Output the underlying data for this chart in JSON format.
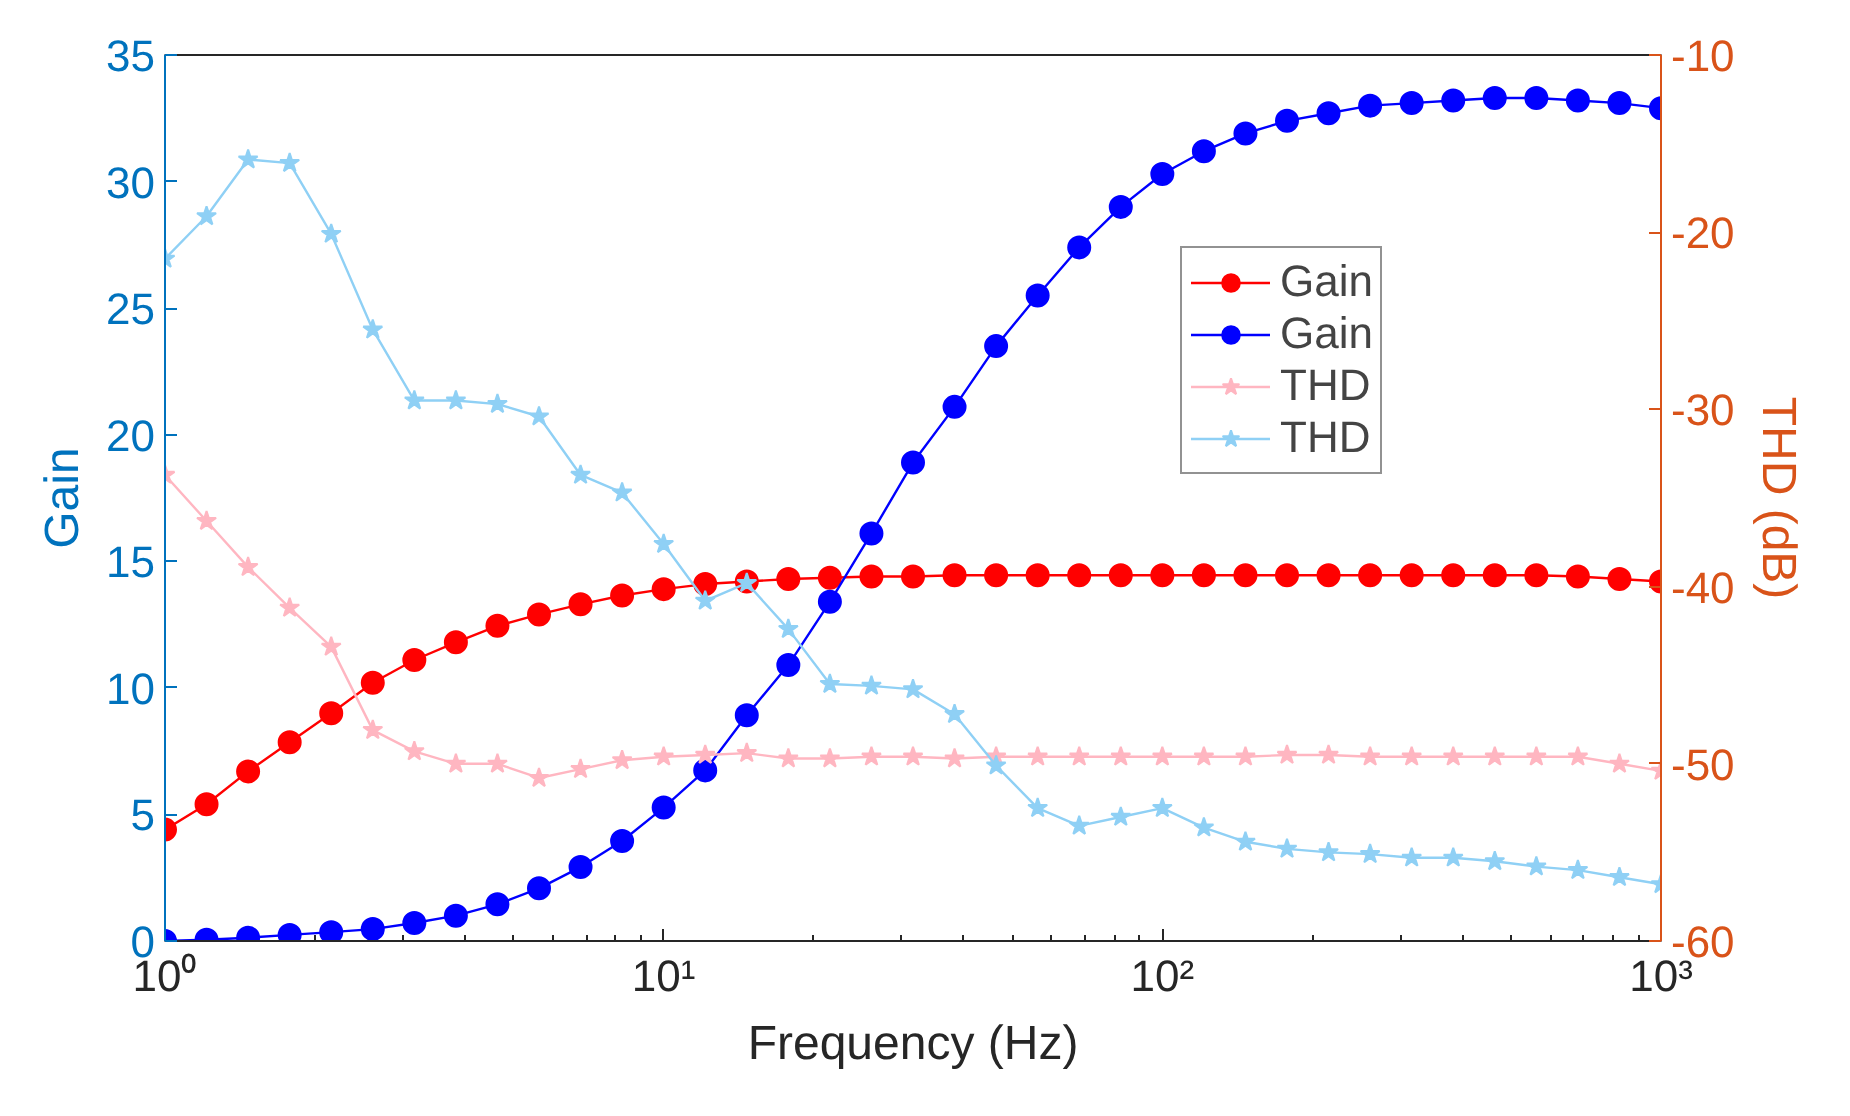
{
  "chart_data": {
    "type": "line",
    "xlabel": "Frequency (Hz)",
    "ylabel": "Gain",
    "y2label": "THD (dB)",
    "x": [
      1.0,
      1.2115,
      1.4678,
      1.7783,
      2.1544,
      2.6102,
      3.1623,
      3.8312,
      4.6416,
      5.6234,
      6.8129,
      8.254,
      10.0,
      12.115,
      14.678,
      17.783,
      21.544,
      26.102,
      31.623,
      38.312,
      46.416,
      56.234,
      68.129,
      82.54,
      100.0,
      121.15,
      146.78,
      177.83,
      215.44,
      261.02,
      316.23,
      383.12,
      464.16,
      562.34,
      681.29,
      825.4,
      1000.0
    ],
    "series": [
      {
        "name": "Gain",
        "color": "#ff0000",
        "marker": "circle",
        "values": [
          4.4,
          5.4,
          6.7,
          7.85,
          9.0,
          10.2,
          11.1,
          11.8,
          12.45,
          12.9,
          13.3,
          13.65,
          13.9,
          14.1,
          14.2,
          14.3,
          14.35,
          14.4,
          14.4,
          14.45,
          14.45,
          14.45,
          14.45,
          14.45,
          14.45,
          14.45,
          14.45,
          14.45,
          14.45,
          14.45,
          14.45,
          14.45,
          14.45,
          14.45,
          14.4,
          14.3,
          14.2
        ]
      },
      {
        "name": "Gain",
        "color": "#0000ff",
        "marker": "circle",
        "values": [
          0.0,
          0.05,
          0.13,
          0.24,
          0.35,
          0.47,
          0.71,
          1.0,
          1.45,
          2.08,
          2.92,
          3.95,
          5.27,
          6.74,
          8.92,
          10.9,
          13.4,
          16.1,
          18.9,
          21.1,
          23.5,
          25.5,
          27.4,
          29.0,
          30.3,
          31.2,
          31.9,
          32.4,
          32.7,
          33.0,
          33.1,
          33.2,
          33.3,
          33.3,
          33.2,
          33.1,
          32.9
        ]
      },
      {
        "name": "THD",
        "color": "#ffb6c1",
        "marker": "star",
        "axis": "y2",
        "values": [
          -33.7,
          -36.3,
          -38.9,
          -41.2,
          -43.4,
          -48.1,
          -49.3,
          -50.0,
          -50.0,
          -50.8,
          -50.3,
          -49.8,
          -49.6,
          -49.5,
          -49.4,
          -49.7,
          -49.7,
          -49.6,
          -49.6,
          -49.7,
          -49.6,
          -49.6,
          -49.6,
          -49.6,
          -49.6,
          -49.6,
          -49.6,
          -49.5,
          -49.5,
          -49.6,
          -49.6,
          -49.6,
          -49.6,
          -49.6,
          -49.6,
          -50.0,
          -50.4
        ]
      },
      {
        "name": "THD",
        "color": "#8fd0f5",
        "marker": "star",
        "axis": "y2",
        "values": [
          -21.5,
          -19.1,
          -15.9,
          -16.1,
          -20.1,
          -25.5,
          -29.5,
          -29.5,
          -29.7,
          -30.4,
          -33.7,
          -34.7,
          -37.6,
          -40.8,
          -39.8,
          -42.4,
          -45.5,
          -45.6,
          -45.8,
          -47.2,
          -50.1,
          -52.5,
          -53.5,
          -53.0,
          -52.5,
          -53.6,
          -54.4,
          -54.8,
          -55.0,
          -55.1,
          -55.3,
          -55.3,
          -55.5,
          -55.8,
          -56.0,
          -56.4,
          -56.8
        ]
      }
    ],
    "log": "x",
    "xlim": [
      1,
      1000
    ],
    "xticks": [
      {
        "value": 1,
        "label": "10⁰"
      },
      {
        "value": 10,
        "label": "10¹"
      },
      {
        "value": 100,
        "label": "10²"
      },
      {
        "value": 1000,
        "label": "10³"
      }
    ],
    "ylim": [
      0,
      35
    ],
    "yticks": [
      0,
      5,
      10,
      15,
      20,
      25,
      30,
      35
    ],
    "y2lim": [
      -60,
      -10
    ],
    "y2ticks": [
      -60,
      -50,
      -40,
      -30,
      -20,
      -10
    ],
    "line_style": "solid",
    "grid": false,
    "legend": "right"
  }
}
